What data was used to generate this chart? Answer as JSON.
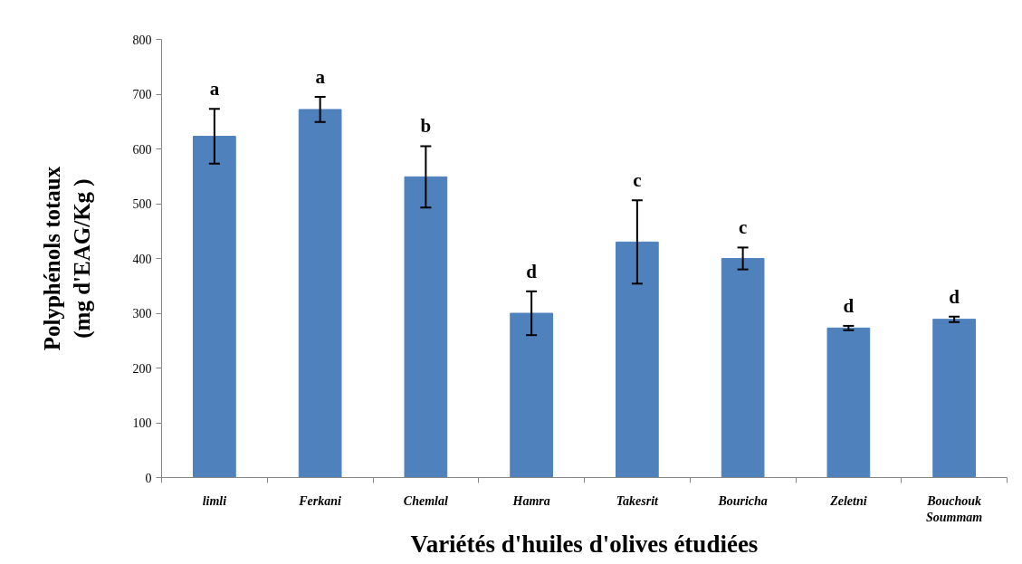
{
  "chart_data": {
    "type": "bar",
    "xlabel": "Variétés d'huiles d'olives étudiées",
    "ylabel": "Polyphénols totaux\n(mg d'EAG/Kg )",
    "categories": [
      "limli",
      "Ferkani",
      "Chemlal",
      "Hamra",
      "Takesrit",
      "Bouricha",
      "Zeletni",
      "Bouchouk Soummam"
    ],
    "values": [
      623,
      672,
      549,
      300,
      430,
      400,
      273,
      289
    ],
    "errors": [
      50,
      23,
      56,
      40,
      76,
      20,
      4,
      5
    ],
    "color": "#4f81bd",
    "ylim": [
      0,
      800
    ],
    "yticks": [
      0,
      100,
      200,
      300,
      400,
      500,
      600,
      700,
      800
    ],
    "annotations": [
      "a",
      "a",
      "b",
      "d",
      "c",
      "c",
      "d",
      "d"
    ]
  }
}
